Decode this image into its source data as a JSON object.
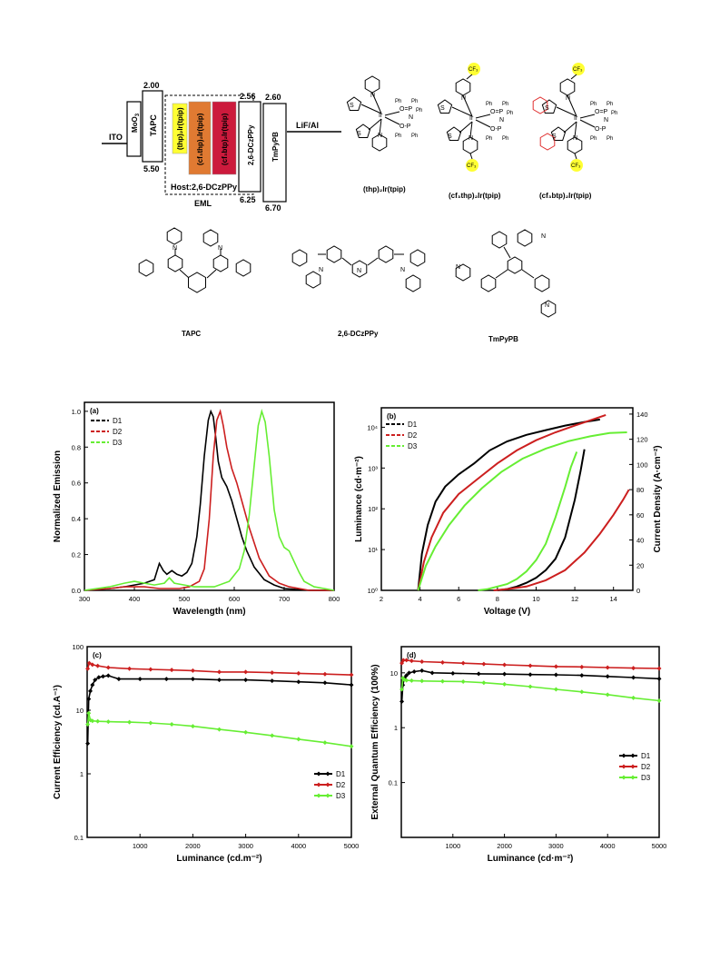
{
  "energy_diagram": {
    "ito": "ITO",
    "moo3": "MoO",
    "moo3_sub": "3",
    "tapc": "TAPC",
    "tapc_top": "2.00",
    "tapc_bottom": "5.50",
    "dopants": [
      "(thp)₂Ir(tpip)",
      "(cf₃thp)₂Ir(tpip)",
      "(cf₃btp)₂Ir(tpip)"
    ],
    "dopant_colors": [
      "#ffff33",
      "#e07a32",
      "#cc1a3c"
    ],
    "host": "Host:2,6-DCzPPy",
    "eml": "EML",
    "dczppy": "2,6-DCzPPy",
    "dczppy_top": "2.56",
    "dczppy_bottom": "6.25",
    "tmpypb": "TmPyPB",
    "tmpypb_top": "2.60",
    "tmpypb_bottom": "6.70",
    "cathode": "LiF/Al"
  },
  "molecules": {
    "labels": [
      "(thp)₂Ir(tpip)",
      "(cf₃thp)₂Ir(tpip)",
      "(cf₃btp)₂Ir(tpip)",
      "TAPC",
      "2,6-DCzPPy",
      "TmPyPB"
    ],
    "atoms": {
      "ph": "Ph",
      "n": "N",
      "o": "O",
      "p": "P",
      "ir": "Ir",
      "s": "S",
      "cf3": "CF₃"
    }
  },
  "chart_data": [
    {
      "panel": "(a)",
      "type": "line",
      "xlabel": "Wavelength (nm)",
      "ylabel": "Normalized Emission",
      "xlim": [
        300,
        800
      ],
      "ylim": [
        0,
        1.05
      ],
      "xticks": [
        300,
        400,
        500,
        600,
        700,
        800
      ],
      "yticks": [
        0.0,
        0.2,
        0.4,
        0.6,
        0.8,
        1.0
      ],
      "legend": "top-left",
      "series": [
        {
          "name": "D1",
          "color": "#000000",
          "x": [
            300,
            350,
            380,
            400,
            420,
            440,
            450,
            458,
            465,
            475,
            485,
            495,
            505,
            515,
            525,
            532,
            540,
            548,
            553,
            558,
            563,
            568,
            575,
            585,
            595,
            605,
            615,
            625,
            640,
            660,
            680,
            700,
            750,
            800
          ],
          "y": [
            0,
            0.01,
            0.02,
            0.03,
            0.04,
            0.06,
            0.15,
            0.11,
            0.09,
            0.11,
            0.09,
            0.08,
            0.1,
            0.15,
            0.3,
            0.48,
            0.75,
            0.95,
            1.0,
            0.97,
            0.85,
            0.72,
            0.63,
            0.58,
            0.5,
            0.4,
            0.3,
            0.22,
            0.13,
            0.06,
            0.03,
            0.01,
            0,
            0
          ]
        },
        {
          "name": "D2",
          "color": "#cc1f1f",
          "x": [
            300,
            350,
            380,
            400,
            420,
            450,
            470,
            490,
            510,
            530,
            540,
            550,
            558,
            565,
            572,
            578,
            585,
            595,
            605,
            615,
            630,
            650,
            670,
            690,
            710,
            750,
            800
          ],
          "y": [
            0,
            0.01,
            0.02,
            0.02,
            0.02,
            0.01,
            0.01,
            0.01,
            0.02,
            0.05,
            0.12,
            0.4,
            0.75,
            0.95,
            1.0,
            0.92,
            0.8,
            0.68,
            0.6,
            0.5,
            0.35,
            0.18,
            0.08,
            0.04,
            0.02,
            0,
            0
          ]
        },
        {
          "name": "D3",
          "color": "#66ee33",
          "x": [
            300,
            350,
            380,
            400,
            420,
            440,
            460,
            470,
            480,
            500,
            520,
            560,
            590,
            610,
            620,
            630,
            640,
            648,
            655,
            662,
            670,
            680,
            690,
            700,
            710,
            720,
            730,
            740,
            760,
            800
          ],
          "y": [
            0,
            0.02,
            0.04,
            0.05,
            0.04,
            0.03,
            0.04,
            0.07,
            0.04,
            0.03,
            0.02,
            0.02,
            0.05,
            0.12,
            0.22,
            0.42,
            0.7,
            0.92,
            1.0,
            0.94,
            0.75,
            0.45,
            0.3,
            0.24,
            0.22,
            0.16,
            0.1,
            0.05,
            0.02,
            0
          ]
        }
      ]
    },
    {
      "panel": "(b)",
      "type": "line",
      "xlabel": "Voltage (V)",
      "ylabel": "Luminance (cd·m⁻²)",
      "ylabel_right": "Current Density (A·cm⁻²)",
      "xlim": [
        2,
        15
      ],
      "ylim": [
        1,
        30000
      ],
      "yscale": "log",
      "ylim_right": [
        0,
        145
      ],
      "xticks": [
        2,
        4,
        6,
        8,
        10,
        12,
        14
      ],
      "yticks": [
        "10⁰",
        "10¹",
        "10²",
        "10³",
        "10⁴"
      ],
      "yticks_right": [
        0,
        20,
        40,
        60,
        80,
        100,
        120,
        140
      ],
      "legend": "top-left",
      "series": [
        {
          "name": "D1",
          "axis": "left",
          "color": "#000000",
          "x": [
            3.9,
            4.1,
            4.4,
            4.8,
            5.3,
            6.0,
            6.8,
            7.6,
            8.5,
            9.5,
            10.5,
            11.5,
            12.5,
            13.3
          ],
          "y": [
            1,
            8,
            40,
            150,
            350,
            700,
            1300,
            2700,
            4500,
            6500,
            8500,
            11000,
            13500,
            15500
          ]
        },
        {
          "name": "D2",
          "axis": "left",
          "color": "#cc1f1f",
          "x": [
            3.9,
            4.2,
            4.6,
            5.2,
            6.0,
            7.0,
            8.0,
            9.0,
            10.0,
            11.0,
            12.0,
            13.0,
            13.6
          ],
          "y": [
            1,
            5,
            20,
            80,
            230,
            550,
            1300,
            2700,
            4800,
            7500,
            11000,
            16000,
            20000
          ]
        },
        {
          "name": "D3",
          "axis": "left",
          "color": "#66ee33",
          "x": [
            3.9,
            4.3,
            4.8,
            5.5,
            6.3,
            7.2,
            8.2,
            9.3,
            10.5,
            11.7,
            12.8,
            13.8,
            14.7
          ],
          "y": [
            1,
            4,
            12,
            40,
            120,
            320,
            800,
            1700,
            3000,
            4600,
            6000,
            7200,
            7500
          ]
        },
        {
          "name": "D1",
          "axis": "right",
          "color": "#000000",
          "x": [
            8.0,
            8.5,
            9.0,
            9.5,
            10.0,
            10.5,
            11.0,
            11.5,
            12.0,
            12.3,
            12.5
          ],
          "y": [
            0,
            1,
            3,
            6,
            10,
            16,
            25,
            42,
            72,
            95,
            112
          ]
        },
        {
          "name": "D2",
          "axis": "right",
          "color": "#cc1f1f",
          "x": [
            7.8,
            8.5,
            9.5,
            10.5,
            11.5,
            12.5,
            13.3,
            14.0,
            14.5,
            14.8
          ],
          "y": [
            0,
            1,
            3,
            8,
            16,
            30,
            45,
            60,
            72,
            80
          ]
        },
        {
          "name": "D3",
          "axis": "right",
          "color": "#66ee33",
          "x": [
            7.0,
            7.5,
            8.0,
            8.5,
            9.0,
            9.5,
            10.0,
            10.5,
            11.0,
            11.5,
            11.8,
            12.1
          ],
          "y": [
            0,
            1,
            3,
            5,
            9,
            15,
            24,
            37,
            58,
            82,
            98,
            110
          ]
        }
      ]
    },
    {
      "panel": "(c)",
      "type": "line",
      "xlabel": "Luminance (cd.m⁻²)",
      "ylabel": "Current Efficiency (cd.A⁻¹)",
      "xlim": [
        0,
        5000
      ],
      "ylim": [
        0.1,
        100
      ],
      "yscale": "log",
      "xticks": [
        1000,
        2000,
        3000,
        4000,
        5000
      ],
      "yticks": [
        "0.1",
        "1",
        "10",
        "100"
      ],
      "legend": "bottom-right",
      "series": [
        {
          "name": "D1",
          "color": "#000000",
          "x": [
            10,
            30,
            60,
            100,
            150,
            220,
            300,
            400,
            600,
            1000,
            1500,
            2000,
            2500,
            3000,
            3500,
            4000,
            4500,
            5000
          ],
          "y": [
            3,
            15,
            20,
            25,
            30,
            33,
            34,
            35,
            31,
            31,
            31,
            31,
            30,
            30,
            29,
            28,
            27,
            25
          ]
        },
        {
          "name": "D2",
          "color": "#cc1f1f",
          "x": [
            10,
            40,
            100,
            200,
            400,
            800,
            1200,
            1600,
            2000,
            2500,
            3000,
            3500,
            4000,
            4500,
            5000
          ],
          "y": [
            45,
            55,
            52,
            50,
            47,
            45,
            44,
            43,
            42,
            40,
            40,
            39,
            38,
            37,
            36
          ]
        },
        {
          "name": "D3",
          "color": "#66ee33",
          "x": [
            10,
            30,
            60,
            100,
            200,
            400,
            800,
            1200,
            1600,
            2000,
            2500,
            3000,
            3500,
            4000,
            4500,
            5000
          ],
          "y": [
            6,
            9,
            7,
            6.8,
            6.7,
            6.6,
            6.5,
            6.3,
            6.0,
            5.6,
            5.0,
            4.5,
            4.0,
            3.5,
            3.1,
            2.7
          ]
        }
      ]
    },
    {
      "panel": "(d)",
      "type": "line",
      "xlabel": "Luminance (cd·m⁻²)",
      "ylabel": "External Quantum Efficiency (100%)",
      "xlim": [
        0,
        5000
      ],
      "ylim": [
        0.01,
        30
      ],
      "yscale": "log",
      "xticks": [
        1000,
        2000,
        3000,
        4000,
        5000
      ],
      "yticks": [
        "0.1",
        "1",
        "10"
      ],
      "legend": "right",
      "series": [
        {
          "name": "D1",
          "color": "#000000",
          "x": [
            10,
            30,
            60,
            100,
            150,
            250,
            400,
            600,
            1000,
            1500,
            2000,
            2500,
            3000,
            3500,
            4000,
            4500,
            5000
          ],
          "y": [
            3,
            6,
            8,
            9,
            10,
            10.5,
            11,
            10,
            9.8,
            9.6,
            9.5,
            9.3,
            9.2,
            9.0,
            8.6,
            8.2,
            7.8
          ]
        },
        {
          "name": "D2",
          "color": "#cc1f1f",
          "x": [
            10,
            40,
            100,
            200,
            400,
            800,
            1200,
            1600,
            2000,
            2500,
            3000,
            3500,
            4000,
            4500,
            5000
          ],
          "y": [
            15,
            17,
            17,
            16.5,
            16,
            15.5,
            15,
            14.5,
            14,
            13.5,
            13,
            12.8,
            12.5,
            12.2,
            12
          ]
        },
        {
          "name": "D3",
          "color": "#66ee33",
          "x": [
            10,
            30,
            60,
            100,
            200,
            400,
            800,
            1200,
            1600,
            2000,
            2500,
            3000,
            3500,
            4000,
            4500,
            5000
          ],
          "y": [
            5,
            8,
            7.5,
            7.3,
            7.2,
            7.1,
            7.0,
            6.9,
            6.6,
            6.2,
            5.6,
            5.0,
            4.5,
            4.0,
            3.5,
            3.1
          ]
        }
      ]
    }
  ]
}
